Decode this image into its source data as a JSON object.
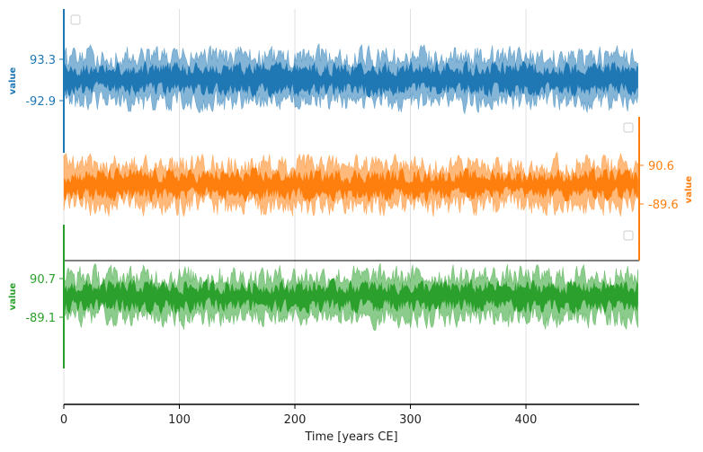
{
  "chart_data": {
    "type": "area",
    "xlabel": "Time [years CE]",
    "xlim": [
      0,
      498
    ],
    "x_ticks": [
      "0",
      "100",
      "200",
      "300",
      "400"
    ],
    "grid": "vertical",
    "legend": "empty boxes, top-left of each panel",
    "series": [
      {
        "color": "#1f77b4",
        "ylabel": "value",
        "y_ticks": [
          "93.3",
          "-92.9"
        ],
        "band_outer_halfwidth": 96,
        "band_inner_halfwidth": 48,
        "axis_side": "left"
      },
      {
        "color": "#ff7f0e",
        "ylabel": "value",
        "y_ticks": [
          "90.6",
          "-89.6"
        ],
        "band_outer_halfwidth": 93,
        "band_inner_halfwidth": 46,
        "axis_side": "right"
      },
      {
        "color": "#2ca02c",
        "ylabel": "value",
        "y_ticks": [
          "90.7",
          "-89.1"
        ],
        "band_outer_halfwidth": 93,
        "band_inner_halfwidth": 46,
        "axis_side": "left"
      }
    ]
  }
}
